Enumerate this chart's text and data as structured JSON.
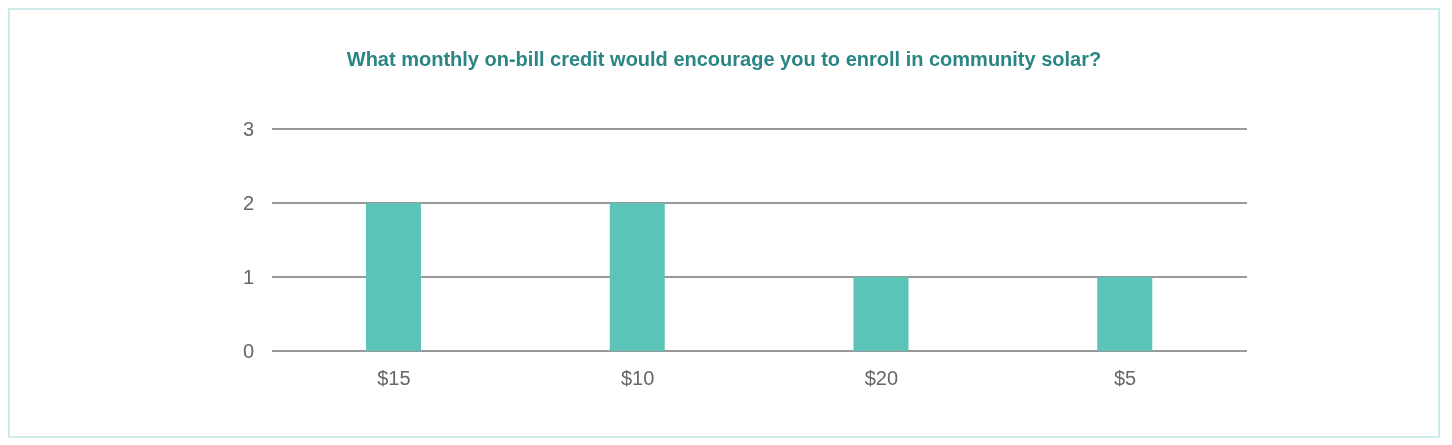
{
  "chart_data": {
    "type": "bar",
    "title": "What monthly on-bill credit would encourage you to enroll in community solar?",
    "categories": [
      "$15",
      "$10",
      "$20",
      "$5"
    ],
    "values": [
      2,
      2,
      1,
      1
    ],
    "color": "#5bc4b6",
    "ylim": [
      0,
      3
    ],
    "yticks": [
      0,
      1,
      2,
      3
    ],
    "grid": "y"
  }
}
